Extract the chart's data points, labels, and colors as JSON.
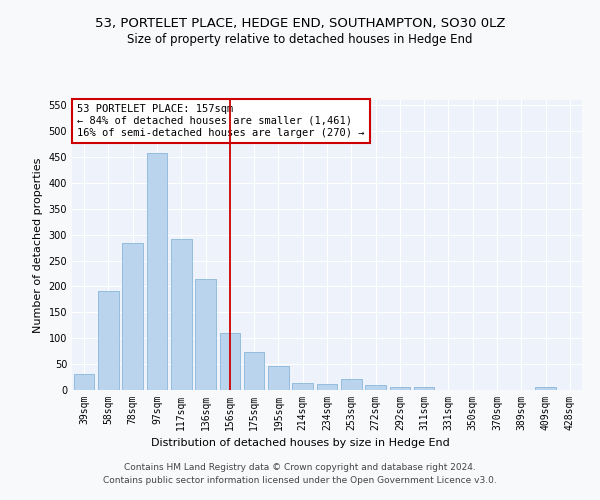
{
  "title": "53, PORTELET PLACE, HEDGE END, SOUTHAMPTON, SO30 0LZ",
  "subtitle": "Size of property relative to detached houses in Hedge End",
  "xlabel": "Distribution of detached houses by size in Hedge End",
  "ylabel": "Number of detached properties",
  "categories": [
    "39sqm",
    "58sqm",
    "78sqm",
    "97sqm",
    "117sqm",
    "136sqm",
    "156sqm",
    "175sqm",
    "195sqm",
    "214sqm",
    "234sqm",
    "253sqm",
    "272sqm",
    "292sqm",
    "311sqm",
    "331sqm",
    "350sqm",
    "370sqm",
    "389sqm",
    "409sqm",
    "428sqm"
  ],
  "values": [
    30,
    192,
    284,
    458,
    292,
    214,
    110,
    74,
    47,
    13,
    12,
    21,
    10,
    5,
    5,
    0,
    0,
    0,
    0,
    5,
    0
  ],
  "bar_color": "#bad4ee",
  "bar_edge_color": "#7aadd4",
  "vline_x_index": 6,
  "vline_color": "#cc0000",
  "annotation_text": "53 PORTELET PLACE: 157sqm\n← 84% of detached houses are smaller (1,461)\n16% of semi-detached houses are larger (270) →",
  "annotation_box_color": "#ffffff",
  "annotation_box_edge_color": "#cc0000",
  "ylim": [
    0,
    560
  ],
  "yticks": [
    0,
    50,
    100,
    150,
    200,
    250,
    300,
    350,
    400,
    450,
    500,
    550
  ],
  "footer_line1": "Contains HM Land Registry data © Crown copyright and database right 2024.",
  "footer_line2": "Contains public sector information licensed under the Open Government Licence v3.0.",
  "bg_color": "#eef2fa",
  "grid_color": "#ffffff",
  "fig_bg_color": "#f8f9fb",
  "title_fontsize": 9.5,
  "subtitle_fontsize": 8.5,
  "axis_label_fontsize": 8,
  "tick_fontsize": 7,
  "annotation_fontsize": 7.5,
  "footer_fontsize": 6.5
}
